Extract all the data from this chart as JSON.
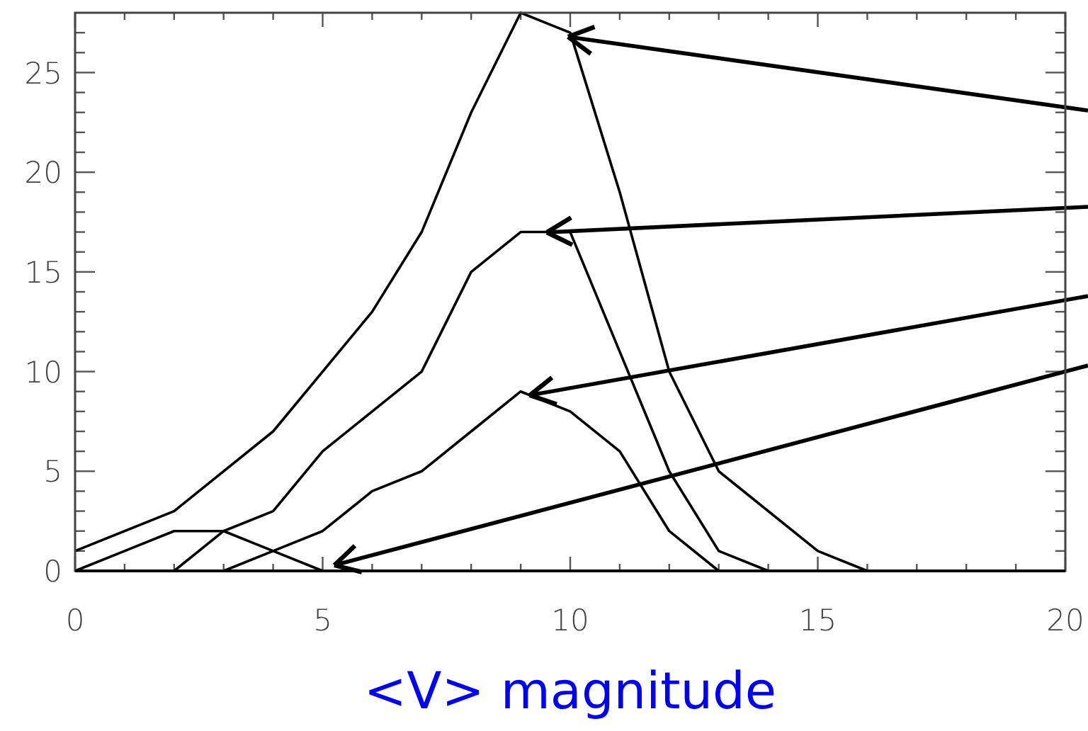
{
  "chart_data": {
    "type": "line",
    "xlabel": "<V> magnitude",
    "xlim": [
      0,
      20
    ],
    "ylim": [
      0,
      28
    ],
    "xticks": [
      0,
      {
        "value": 1,
        "label": null
      },
      {
        "value": 2,
        "label": null
      },
      {
        "value": 3,
        "label": null
      },
      {
        "value": 4,
        "label": null
      },
      5,
      {
        "value": 6,
        "label": null
      },
      {
        "value": 7,
        "label": null
      },
      {
        "value": 8,
        "label": null
      },
      {
        "value": 9,
        "label": null
      },
      10,
      {
        "value": 11,
        "label": null
      },
      {
        "value": 12,
        "label": null
      },
      {
        "value": 13,
        "label": null
      },
      {
        "value": 14,
        "label": null
      },
      15,
      {
        "value": 16,
        "label": null
      },
      {
        "value": 17,
        "label": null
      },
      {
        "value": 18,
        "label": null
      },
      {
        "value": 19,
        "label": null
      },
      20
    ],
    "yticks": [
      0,
      {
        "value": 1,
        "label": null
      },
      {
        "value": 2,
        "label": null
      },
      {
        "value": 3,
        "label": null
      },
      {
        "value": 4,
        "label": null
      },
      5,
      {
        "value": 6,
        "label": null
      },
      {
        "value": 7,
        "label": null
      },
      {
        "value": 8,
        "label": null
      },
      {
        "value": 9,
        "label": null
      },
      10,
      {
        "value": 11,
        "label": null
      },
      {
        "value": 12,
        "label": null
      },
      {
        "value": 13,
        "label": null
      },
      {
        "value": 14,
        "label": null
      },
      15,
      {
        "value": 16,
        "label": null
      },
      {
        "value": 17,
        "label": null
      },
      {
        "value": 18,
        "label": null
      },
      {
        "value": 19,
        "label": null
      },
      20,
      {
        "value": 21,
        "label": null
      },
      {
        "value": 22,
        "label": null
      },
      {
        "value": 23,
        "label": null
      },
      {
        "value": 24,
        "label": null
      },
      25,
      {
        "value": 26,
        "label": null
      },
      {
        "value": 27,
        "label": null
      }
    ],
    "grid": false,
    "marker": "none",
    "line_style": "solid",
    "series": [
      {
        "color": "#000000",
        "x": [
          0,
          2,
          4,
          5,
          6,
          7,
          8,
          9,
          10,
          11,
          12,
          13,
          15,
          16
        ],
        "values": [
          1,
          3,
          7,
          10,
          13,
          17,
          23,
          28,
          27,
          19,
          10,
          5,
          1,
          0
        ]
      },
      {
        "color": "#000000",
        "x": [
          2,
          3,
          4,
          5,
          6,
          7,
          8,
          9,
          10,
          11,
          12,
          13,
          14
        ],
        "values": [
          0,
          2,
          3,
          6,
          8,
          10,
          15,
          17,
          17,
          11,
          5,
          1,
          0
        ]
      },
      {
        "color": "#000000",
        "x": [
          3,
          4,
          5,
          6,
          7,
          8,
          9,
          10,
          11,
          12,
          13
        ],
        "values": [
          0,
          1,
          2,
          4,
          5,
          7,
          9,
          8,
          6,
          2,
          0
        ]
      },
      {
        "color": "#000000",
        "x": [
          0,
          1,
          2,
          3,
          4,
          5
        ],
        "values": [
          0,
          1,
          2,
          2,
          1,
          0
        ]
      }
    ]
  }
}
